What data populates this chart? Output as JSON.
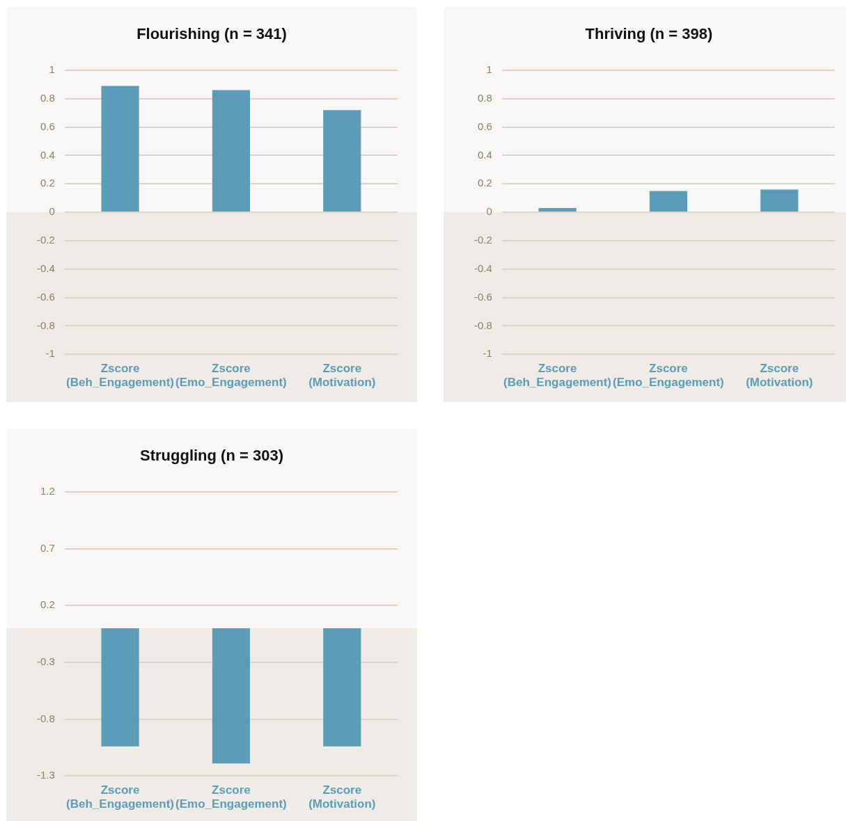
{
  "chart_data": [
    {
      "type": "bar",
      "title": "Flourishing (n = 341)",
      "categories": [
        "Zscore (Beh_Engagement)",
        "Zscore (Emo_Engagement)",
        "Zscore (Motivation)"
      ],
      "values": [
        0.89,
        0.86,
        0.72
      ],
      "color": "#5b9cb8",
      "ylim": [
        -1,
        1
      ],
      "yticks": [
        -1,
        -0.8,
        -0.6,
        -0.4,
        -0.2,
        0,
        0.2,
        0.4,
        0.6,
        0.8,
        1
      ],
      "grid": "y",
      "bands": [
        {
          "axis": "y",
          "from": -1,
          "to": 0,
          "color": "#efebe6"
        }
      ]
    },
    {
      "type": "bar",
      "title": "Thriving (n = 398)",
      "categories": [
        "Zscore (Beh_Engagement)",
        "Zscore (Emo_Engagement)",
        "Zscore (Motivation)"
      ],
      "values": [
        0.03,
        0.15,
        0.16
      ],
      "color": "#5b9cb8",
      "ylim": [
        -1,
        1
      ],
      "yticks": [
        -1,
        -0.8,
        -0.6,
        -0.4,
        -0.2,
        0,
        0.2,
        0.4,
        0.6,
        0.8,
        1
      ],
      "grid": "y",
      "bands": [
        {
          "axis": "y",
          "from": -1,
          "to": 0,
          "color": "#efebe6"
        }
      ]
    },
    {
      "type": "bar",
      "title": "Struggling (n = 303)",
      "categories": [
        "Zscore (Beh_Engagement)",
        "Zscore (Emo_Engagement)",
        "Zscore (Motivation)"
      ],
      "values": [
        -1.04,
        -1.19,
        -1.04
      ],
      "color": "#5b9cb8",
      "ylim": [
        -1.3,
        1.2
      ],
      "yticks": [
        -1.3,
        -0.8,
        -0.3,
        0.2,
        0.7,
        1.2
      ],
      "grid": "y",
      "bands": [
        {
          "axis": "y",
          "from": -1.3,
          "to": 0,
          "color": "#efebe6"
        }
      ]
    }
  ]
}
